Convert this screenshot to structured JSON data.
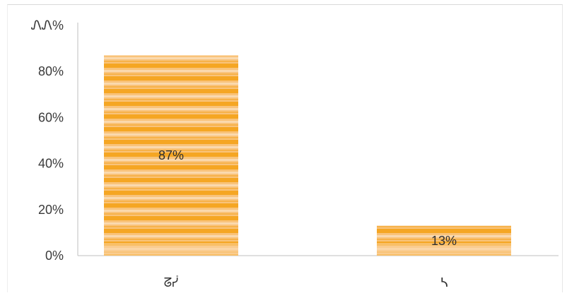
{
  "chart_data": {
    "type": "bar",
    "categories": [
      "ᘔᓮ",
      "ᓴ"
    ],
    "values": [
      87,
      13
    ],
    "data_labels": [
      "87%",
      "13%"
    ],
    "y_ticks": [
      "0%",
      "20%",
      "40%",
      "60%",
      "80%",
      "ᏁᏁ%"
    ],
    "ylim": [
      0,
      100
    ],
    "grid": false,
    "legend": "none",
    "colors": {
      "bar": "#f5a623",
      "bar_light": "#fbd3a0",
      "axis": "#bfbfbf"
    }
  }
}
